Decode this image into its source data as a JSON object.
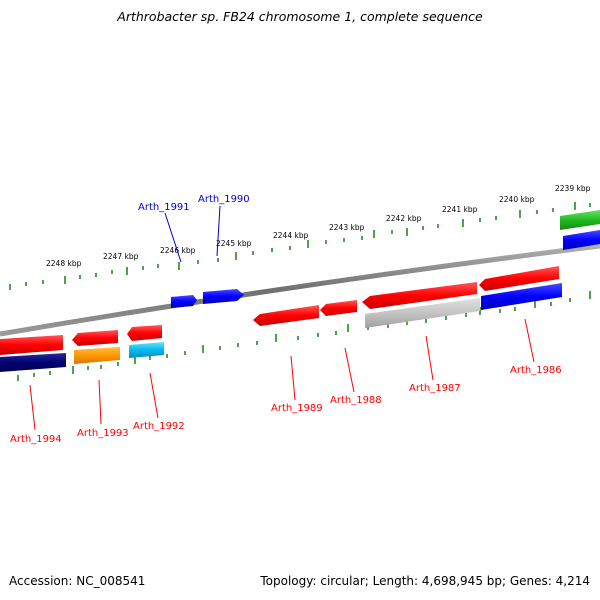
{
  "title": "Arthrobacter sp. FB24 chromosome 1, complete sequence",
  "footer": {
    "accession": "Accession: NC_008541",
    "topology": "Topology: circular; Length: 4,698,945 bp; Genes: 4,214"
  },
  "colors": {
    "backbone": "#808080",
    "tick": "#228b22",
    "forward_gene": "#ff0000",
    "reverse_gene": "#0000ff",
    "label_forward": "#ff0000",
    "label_reverse": "#0000cc"
  },
  "kbp_labels": [
    "2239 kbp",
    "2240 kbp",
    "2241 kbp",
    "2242 kbp",
    "2243 kbp",
    "2244 kbp",
    "2245 kbp",
    "2246 kbp",
    "2247 kbp",
    "2248 kbp"
  ],
  "genes": [
    {
      "name": "Arth_1986",
      "color": "#ff0000"
    },
    {
      "name": "Arth_1987",
      "color": "#ff0000"
    },
    {
      "name": "Arth_1988",
      "color": "#ff0000"
    },
    {
      "name": "Arth_1989",
      "color": "#ff0000"
    },
    {
      "name": "Arth_1990",
      "color": "#0000cc"
    },
    {
      "name": "Arth_1991",
      "color": "#0000cc"
    },
    {
      "name": "Arth_1992",
      "color": "#ff0000"
    },
    {
      "name": "Arth_1993",
      "color": "#ff0000"
    },
    {
      "name": "Arth_1994",
      "color": "#ff0000"
    }
  ]
}
